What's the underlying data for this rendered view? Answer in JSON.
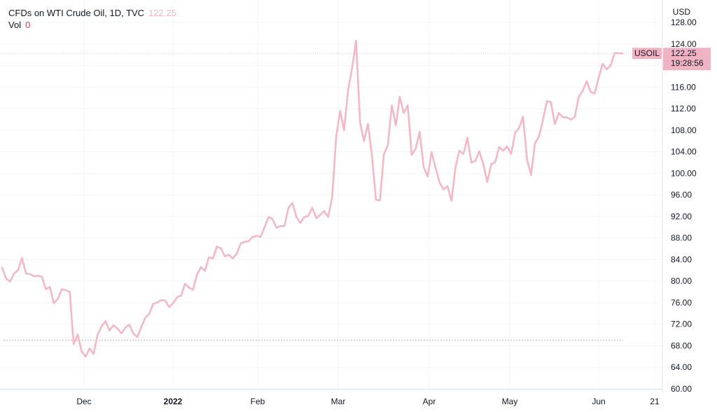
{
  "header": {
    "title": "CFDs on WTI Crude Oil, 1D, TVC",
    "last_price": "122.25",
    "vol_label": "Vol",
    "vol_value": "0"
  },
  "axis": {
    "currency": "USD",
    "y_ticks": [
      "60.00",
      "64.00",
      "68.00",
      "72.00",
      "76.00",
      "80.00",
      "84.00",
      "88.00",
      "92.00",
      "96.00",
      "100.00",
      "104.00",
      "108.00",
      "112.00",
      "116.00",
      "120.00",
      "124.00",
      "128.00"
    ],
    "x_ticks": [
      {
        "label": "Dec",
        "bold": false
      },
      {
        "label": "2022",
        "bold": true
      },
      {
        "label": "Feb",
        "bold": false
      },
      {
        "label": "Mar",
        "bold": false
      },
      {
        "label": "Apr",
        "bold": false
      },
      {
        "label": "May",
        "bold": false
      },
      {
        "label": "Jun",
        "bold": false
      },
      {
        "label": "21",
        "bold": false
      }
    ]
  },
  "price_tag": {
    "symbol": "USOIL",
    "price": "122.25",
    "countdown": "19:28:56"
  },
  "colors": {
    "line": "#f2b8c6",
    "tag": "#f0b3c4",
    "grid": "#f0f3fa",
    "dashed_level": "#c9a8b0",
    "text": "#131722"
  },
  "chart_data": {
    "type": "line",
    "title": "CFDs on WTI Crude Oil, 1D, TVC",
    "ylabel": "USD",
    "ylim": [
      60,
      129
    ],
    "reference_level": 69,
    "last_value": 122.25,
    "values": [
      82.5,
      80.5,
      79.9,
      81.4,
      82.0,
      84.3,
      81.4,
      81.3,
      80.9,
      81.0,
      80.8,
      78.5,
      78.9,
      75.9,
      76.7,
      78.5,
      78.3,
      78.0,
      68.3,
      70.1,
      66.9,
      66.0,
      67.5,
      66.5,
      70.0,
      71.6,
      72.6,
      70.8,
      71.8,
      71.2,
      70.3,
      71.4,
      71.9,
      70.3,
      69.6,
      71.5,
      73.2,
      73.9,
      75.8,
      76.0,
      76.5,
      76.4,
      75.2,
      75.9,
      77.0,
      77.3,
      79.5,
      78.8,
      78.4,
      81.2,
      82.6,
      81.9,
      84.4,
      84.2,
      86.4,
      86.1,
      84.6,
      84.9,
      84.2,
      85.1,
      87.0,
      87.3,
      87.4,
      88.2,
      88.4,
      88.2,
      90.0,
      91.9,
      91.5,
      89.9,
      90.2,
      90.2,
      93.6,
      94.5,
      91.9,
      90.8,
      91.9,
      92.1,
      93.6,
      91.7,
      92.3,
      93.0,
      91.9,
      95.6,
      106.8,
      111.6,
      108.0,
      115.4,
      119.5,
      124.6,
      109.5,
      106.0,
      109.2,
      103.2,
      95.1,
      95.0,
      103.5,
      105.2,
      112.6,
      108.9,
      114.2,
      111.2,
      112.6,
      103.4,
      104.6,
      107.7,
      101.2,
      99.4,
      103.9,
      101.0,
      98.3,
      97.0,
      97.6,
      94.9,
      101.1,
      104.2,
      103.6,
      106.6,
      102.0,
      102.3,
      104.1,
      101.7,
      98.4,
      101.7,
      102.1,
      104.9,
      104.2,
      105.0,
      103.6,
      107.5,
      108.4,
      110.5,
      102.6,
      99.7,
      105.6,
      106.8,
      109.9,
      113.4,
      113.2,
      109.1,
      111.2,
      110.4,
      110.4,
      110.0,
      110.4,
      114.2,
      115.3,
      117.1,
      115.1,
      114.8,
      117.7,
      120.3,
      119.3,
      120.0,
      122.3,
      122.3,
      122.25
    ]
  }
}
